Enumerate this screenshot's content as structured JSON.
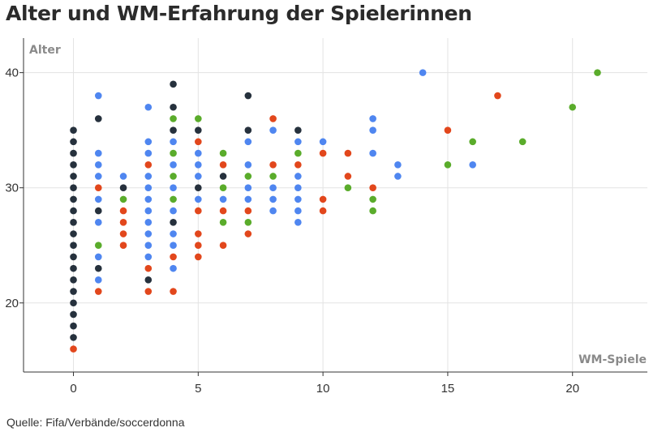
{
  "chart_data": {
    "type": "scatter",
    "title": "Alter und WM-Erfahrung der Spielerinnen",
    "xlabel": "WM-Spiele",
    "ylabel": "Alter",
    "xlim": [
      -2,
      23
    ],
    "ylim": [
      14,
      43
    ],
    "xticks": [
      0,
      5,
      10,
      15,
      20
    ],
    "yticks": [
      20,
      30,
      40
    ],
    "grid": true,
    "colors": {
      "navy": "#26313d",
      "blue": "#4f86f0",
      "red": "#e2471c",
      "green": "#5aac2b"
    },
    "points": [
      {
        "x": 0,
        "y": 16,
        "c": "red"
      },
      {
        "x": 0,
        "y": 17,
        "c": "navy"
      },
      {
        "x": 0,
        "y": 18,
        "c": "navy"
      },
      {
        "x": 0,
        "y": 19,
        "c": "navy"
      },
      {
        "x": 0,
        "y": 20,
        "c": "navy"
      },
      {
        "x": 0,
        "y": 21,
        "c": "navy"
      },
      {
        "x": 0,
        "y": 22,
        "c": "navy"
      },
      {
        "x": 0,
        "y": 23,
        "c": "navy"
      },
      {
        "x": 0,
        "y": 24,
        "c": "navy"
      },
      {
        "x": 0,
        "y": 25,
        "c": "navy"
      },
      {
        "x": 0,
        "y": 26,
        "c": "navy"
      },
      {
        "x": 0,
        "y": 27,
        "c": "navy"
      },
      {
        "x": 0,
        "y": 28,
        "c": "navy"
      },
      {
        "x": 0,
        "y": 29,
        "c": "navy"
      },
      {
        "x": 0,
        "y": 30,
        "c": "navy"
      },
      {
        "x": 0,
        "y": 31,
        "c": "navy"
      },
      {
        "x": 0,
        "y": 32,
        "c": "navy"
      },
      {
        "x": 0,
        "y": 33,
        "c": "navy"
      },
      {
        "x": 0,
        "y": 34,
        "c": "navy"
      },
      {
        "x": 0,
        "y": 35,
        "c": "navy"
      },
      {
        "x": 1,
        "y": 38,
        "c": "blue"
      },
      {
        "x": 1,
        "y": 36,
        "c": "navy"
      },
      {
        "x": 1,
        "y": 33,
        "c": "blue"
      },
      {
        "x": 1,
        "y": 32,
        "c": "blue"
      },
      {
        "x": 1,
        "y": 31,
        "c": "blue"
      },
      {
        "x": 1,
        "y": 30,
        "c": "red"
      },
      {
        "x": 1,
        "y": 29,
        "c": "blue"
      },
      {
        "x": 1,
        "y": 28,
        "c": "navy"
      },
      {
        "x": 1,
        "y": 27,
        "c": "blue"
      },
      {
        "x": 1,
        "y": 25,
        "c": "green"
      },
      {
        "x": 1,
        "y": 24,
        "c": "blue"
      },
      {
        "x": 1,
        "y": 23,
        "c": "navy"
      },
      {
        "x": 1,
        "y": 22,
        "c": "blue"
      },
      {
        "x": 1,
        "y": 21,
        "c": "red"
      },
      {
        "x": 2,
        "y": 31,
        "c": "blue"
      },
      {
        "x": 2,
        "y": 30,
        "c": "navy"
      },
      {
        "x": 2,
        "y": 29,
        "c": "green"
      },
      {
        "x": 2,
        "y": 28,
        "c": "red"
      },
      {
        "x": 2,
        "y": 27,
        "c": "red"
      },
      {
        "x": 2,
        "y": 26,
        "c": "red"
      },
      {
        "x": 2,
        "y": 25,
        "c": "red"
      },
      {
        "x": 3,
        "y": 37,
        "c": "blue"
      },
      {
        "x": 3,
        "y": 34,
        "c": "blue"
      },
      {
        "x": 3,
        "y": 33,
        "c": "blue"
      },
      {
        "x": 3,
        "y": 32,
        "c": "red"
      },
      {
        "x": 3,
        "y": 31,
        "c": "blue"
      },
      {
        "x": 3,
        "y": 30,
        "c": "blue"
      },
      {
        "x": 3,
        "y": 29,
        "c": "blue"
      },
      {
        "x": 3,
        "y": 28,
        "c": "blue"
      },
      {
        "x": 3,
        "y": 27,
        "c": "blue"
      },
      {
        "x": 3,
        "y": 26,
        "c": "blue"
      },
      {
        "x": 3,
        "y": 25,
        "c": "blue"
      },
      {
        "x": 3,
        "y": 24,
        "c": "blue"
      },
      {
        "x": 3,
        "y": 23,
        "c": "red"
      },
      {
        "x": 3,
        "y": 22,
        "c": "navy"
      },
      {
        "x": 3,
        "y": 21,
        "c": "red"
      },
      {
        "x": 4,
        "y": 39,
        "c": "navy"
      },
      {
        "x": 4,
        "y": 37,
        "c": "navy"
      },
      {
        "x": 4,
        "y": 36,
        "c": "green"
      },
      {
        "x": 4,
        "y": 35,
        "c": "navy"
      },
      {
        "x": 4,
        "y": 34,
        "c": "blue"
      },
      {
        "x": 4,
        "y": 33,
        "c": "green"
      },
      {
        "x": 4,
        "y": 32,
        "c": "blue"
      },
      {
        "x": 4,
        "y": 31,
        "c": "green"
      },
      {
        "x": 4,
        "y": 30,
        "c": "blue"
      },
      {
        "x": 4,
        "y": 29,
        "c": "green"
      },
      {
        "x": 4,
        "y": 28,
        "c": "blue"
      },
      {
        "x": 4,
        "y": 27,
        "c": "navy"
      },
      {
        "x": 4,
        "y": 26,
        "c": "blue"
      },
      {
        "x": 4,
        "y": 25,
        "c": "blue"
      },
      {
        "x": 4,
        "y": 24,
        "c": "red"
      },
      {
        "x": 4,
        "y": 23,
        "c": "blue"
      },
      {
        "x": 4,
        "y": 21,
        "c": "red"
      },
      {
        "x": 5,
        "y": 36,
        "c": "green"
      },
      {
        "x": 5,
        "y": 35,
        "c": "navy"
      },
      {
        "x": 5,
        "y": 34,
        "c": "red"
      },
      {
        "x": 5,
        "y": 33,
        "c": "blue"
      },
      {
        "x": 5,
        "y": 32,
        "c": "blue"
      },
      {
        "x": 5,
        "y": 31,
        "c": "blue"
      },
      {
        "x": 5,
        "y": 30,
        "c": "navy"
      },
      {
        "x": 5,
        "y": 29,
        "c": "blue"
      },
      {
        "x": 5,
        "y": 28,
        "c": "red"
      },
      {
        "x": 5,
        "y": 26,
        "c": "red"
      },
      {
        "x": 5,
        "y": 25,
        "c": "red"
      },
      {
        "x": 5,
        "y": 24,
        "c": "red"
      },
      {
        "x": 6,
        "y": 33,
        "c": "green"
      },
      {
        "x": 6,
        "y": 32,
        "c": "red"
      },
      {
        "x": 6,
        "y": 31,
        "c": "navy"
      },
      {
        "x": 6,
        "y": 30,
        "c": "green"
      },
      {
        "x": 6,
        "y": 29,
        "c": "blue"
      },
      {
        "x": 6,
        "y": 28,
        "c": "red"
      },
      {
        "x": 6,
        "y": 27,
        "c": "green"
      },
      {
        "x": 6,
        "y": 25,
        "c": "red"
      },
      {
        "x": 7,
        "y": 38,
        "c": "navy"
      },
      {
        "x": 7,
        "y": 35,
        "c": "navy"
      },
      {
        "x": 7,
        "y": 34,
        "c": "blue"
      },
      {
        "x": 7,
        "y": 32,
        "c": "blue"
      },
      {
        "x": 7,
        "y": 31,
        "c": "green"
      },
      {
        "x": 7,
        "y": 30,
        "c": "blue"
      },
      {
        "x": 7,
        "y": 29,
        "c": "blue"
      },
      {
        "x": 7,
        "y": 28,
        "c": "red"
      },
      {
        "x": 7,
        "y": 27,
        "c": "green"
      },
      {
        "x": 7,
        "y": 26,
        "c": "red"
      },
      {
        "x": 8,
        "y": 36,
        "c": "red"
      },
      {
        "x": 8,
        "y": 35,
        "c": "blue"
      },
      {
        "x": 8,
        "y": 32,
        "c": "red"
      },
      {
        "x": 8,
        "y": 31,
        "c": "green"
      },
      {
        "x": 8,
        "y": 30,
        "c": "blue"
      },
      {
        "x": 8,
        "y": 29,
        "c": "blue"
      },
      {
        "x": 8,
        "y": 28,
        "c": "blue"
      },
      {
        "x": 9,
        "y": 35,
        "c": "navy"
      },
      {
        "x": 9,
        "y": 34,
        "c": "blue"
      },
      {
        "x": 9,
        "y": 33,
        "c": "green"
      },
      {
        "x": 9,
        "y": 32,
        "c": "red"
      },
      {
        "x": 9,
        "y": 31,
        "c": "blue"
      },
      {
        "x": 9,
        "y": 30,
        "c": "blue"
      },
      {
        "x": 9,
        "y": 29,
        "c": "blue"
      },
      {
        "x": 9,
        "y": 28,
        "c": "blue"
      },
      {
        "x": 9,
        "y": 27,
        "c": "blue"
      },
      {
        "x": 10,
        "y": 34,
        "c": "blue"
      },
      {
        "x": 10,
        "y": 33,
        "c": "red"
      },
      {
        "x": 10,
        "y": 29,
        "c": "red"
      },
      {
        "x": 10,
        "y": 28,
        "c": "red"
      },
      {
        "x": 11,
        "y": 33,
        "c": "red"
      },
      {
        "x": 11,
        "y": 31,
        "c": "red"
      },
      {
        "x": 11,
        "y": 30,
        "c": "green"
      },
      {
        "x": 12,
        "y": 36,
        "c": "blue"
      },
      {
        "x": 12,
        "y": 35,
        "c": "blue"
      },
      {
        "x": 12,
        "y": 33,
        "c": "blue"
      },
      {
        "x": 12,
        "y": 30,
        "c": "red"
      },
      {
        "x": 12,
        "y": 29,
        "c": "green"
      },
      {
        "x": 12,
        "y": 28,
        "c": "green"
      },
      {
        "x": 13,
        "y": 32,
        "c": "blue"
      },
      {
        "x": 13,
        "y": 31,
        "c": "blue"
      },
      {
        "x": 14,
        "y": 40,
        "c": "blue"
      },
      {
        "x": 15,
        "y": 35,
        "c": "red"
      },
      {
        "x": 15,
        "y": 32,
        "c": "green"
      },
      {
        "x": 16,
        "y": 34,
        "c": "green"
      },
      {
        "x": 16,
        "y": 32,
        "c": "blue"
      },
      {
        "x": 17,
        "y": 38,
        "c": "red"
      },
      {
        "x": 18,
        "y": 34,
        "c": "green"
      },
      {
        "x": 20,
        "y": 37,
        "c": "green"
      },
      {
        "x": 21,
        "y": 40,
        "c": "green"
      }
    ]
  },
  "source": "Quelle: Fifa/Verbände/soccerdonna"
}
